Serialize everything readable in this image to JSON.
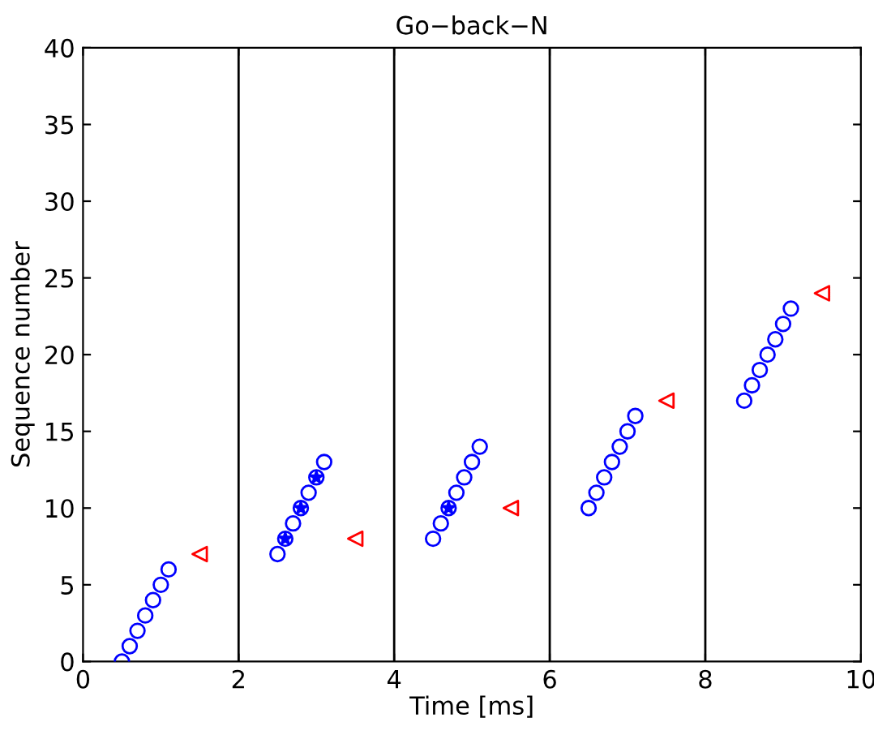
{
  "chart_data": {
    "type": "scatter",
    "title": "Go−back−N",
    "xlabel": "Time [ms]",
    "ylabel": "Sequence number",
    "xlim": [
      0,
      10
    ],
    "ylim": [
      0,
      40
    ],
    "xticks": [
      0,
      2,
      4,
      6,
      8,
      10
    ],
    "yticks": [
      0,
      5,
      10,
      15,
      20,
      25,
      30,
      35,
      40
    ],
    "grid": false,
    "legend": false,
    "series": [
      {
        "color": "#0000ff",
        "marker": "circle",
        "x": [
          0.5,
          0.6,
          0.7,
          0.8,
          0.9,
          1.0,
          1.1,
          2.5,
          2.6,
          2.7,
          2.8,
          2.9,
          3.0,
          3.1,
          4.5,
          4.6,
          4.7,
          4.8,
          4.9,
          5.0,
          5.1,
          6.5,
          6.6,
          6.7,
          6.8,
          6.9,
          7.0,
          7.1,
          8.5,
          8.6,
          8.7,
          8.8,
          8.9,
          9.0,
          9.1
        ],
        "values": [
          0,
          1,
          2,
          3,
          4,
          5,
          6,
          7,
          8,
          9,
          10,
          11,
          12,
          13,
          8,
          9,
          10,
          11,
          12,
          13,
          14,
          10,
          11,
          12,
          13,
          14,
          15,
          16,
          17,
          18,
          19,
          20,
          21,
          22,
          23
        ]
      },
      {
        "color": "#0000ff",
        "marker": "star",
        "x": [
          2.6,
          2.8,
          3.0,
          4.7
        ],
        "values": [
          8,
          10,
          12,
          10
        ]
      },
      {
        "color": "#ff0000",
        "marker": "triangle",
        "x": [
          1.5,
          3.5,
          5.5,
          7.5,
          9.5
        ],
        "values": [
          7,
          8,
          10,
          17,
          24
        ]
      }
    ],
    "ref_lines": [
      {
        "axis": "x",
        "value": 2,
        "color": "#000000"
      },
      {
        "axis": "x",
        "value": 4,
        "color": "#000000"
      },
      {
        "axis": "x",
        "value": 6,
        "color": "#000000"
      },
      {
        "axis": "x",
        "value": 8,
        "color": "#000000"
      }
    ]
  }
}
